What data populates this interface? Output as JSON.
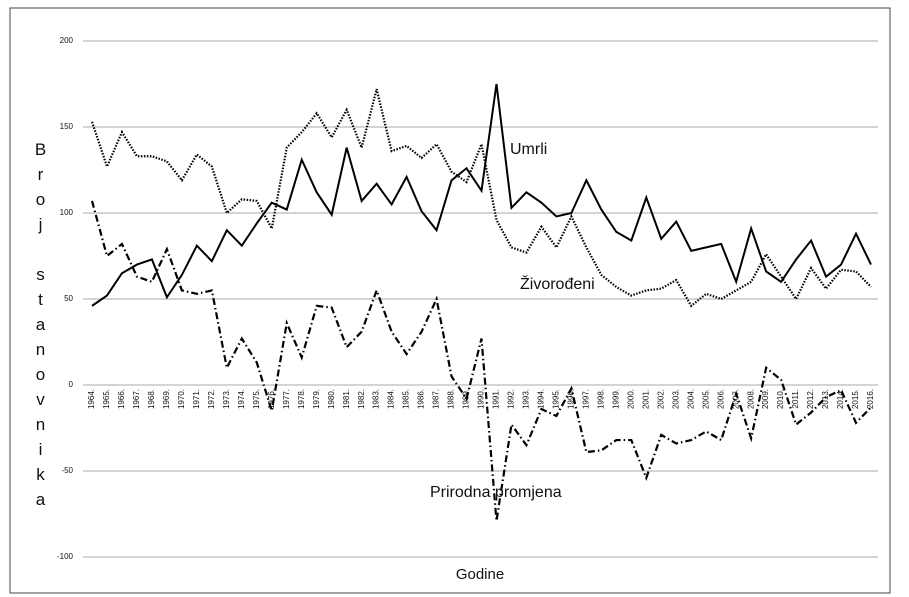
{
  "chart_data": {
    "type": "line",
    "x_label": "Godine",
    "y_label": "Broj stanovnika",
    "categories": [
      "1964.",
      "1965.",
      "1966.",
      "1967.",
      "1968.",
      "1969.",
      "1970.",
      "1971.",
      "1972.",
      "1973.",
      "1974.",
      "1975.",
      "1976.",
      "1977.",
      "1978.",
      "1979.",
      "1980.",
      "1981.",
      "1982.",
      "1983.",
      "1984.",
      "1985.",
      "1986.",
      "1987.",
      "1988.",
      "1989.",
      "1990.",
      "1991.",
      "1992.",
      "1993.",
      "1994.",
      "1995.",
      "1996.",
      "1997.",
      "1998.",
      "1999.",
      "2000.",
      "2001.",
      "2002.",
      "2003.",
      "2004.",
      "2005.",
      "2006.",
      "2007.",
      "2008.",
      "2009.",
      "2010.",
      "2011.",
      "2012.",
      "2013.",
      "2014.",
      "2015.",
      "2016."
    ],
    "series": [
      {
        "name": "Umrli",
        "color": "#000000",
        "style": "solid",
        "values": [
          46,
          52,
          65,
          70,
          73,
          51,
          64,
          81,
          72,
          90,
          81,
          94,
          106,
          102,
          131,
          112,
          99,
          138,
          107,
          117,
          105,
          121,
          101,
          90,
          119,
          126,
          113,
          175,
          103,
          112,
          106,
          98,
          100,
          119,
          102,
          89,
          84,
          109,
          85,
          95,
          78,
          80,
          82,
          60,
          91,
          66,
          60,
          73,
          84,
          63,
          70,
          88,
          70
        ]
      },
      {
        "name": "Živorođeni",
        "color": "#000000",
        "style": "dotted",
        "values": [
          153,
          127,
          147,
          133,
          133,
          130,
          119,
          134,
          127,
          100,
          108,
          107,
          91,
          138,
          147,
          158,
          144,
          160,
          138,
          172,
          136,
          139,
          132,
          140,
          124,
          118,
          140,
          96,
          80,
          77,
          92,
          80,
          98,
          80,
          64,
          57,
          52,
          55,
          56,
          61,
          46,
          53,
          50,
          55,
          60,
          76,
          63,
          50,
          68,
          56,
          67,
          66,
          57
        ]
      },
      {
        "name": "Prirodna promjena",
        "color": "#000000",
        "style": "dashdot",
        "values": [
          107,
          75,
          82,
          63,
          60,
          79,
          55,
          53,
          55,
          10,
          27,
          13,
          -15,
          36,
          16,
          46,
          45,
          22,
          31,
          55,
          31,
          18,
          31,
          50,
          5,
          -8,
          27,
          -79,
          -23,
          -35,
          -14,
          -18,
          -2,
          -39,
          -38,
          -32,
          -32,
          -54,
          -29,
          -34,
          -32,
          -27,
          -32,
          -5,
          -31,
          10,
          3,
          -23,
          -16,
          -7,
          -3,
          -22,
          -13
        ]
      }
    ],
    "ylim": [
      -100,
      200
    ],
    "yticks": [
      -100,
      -50,
      0,
      50,
      100,
      150,
      200
    ],
    "grid": true
  }
}
